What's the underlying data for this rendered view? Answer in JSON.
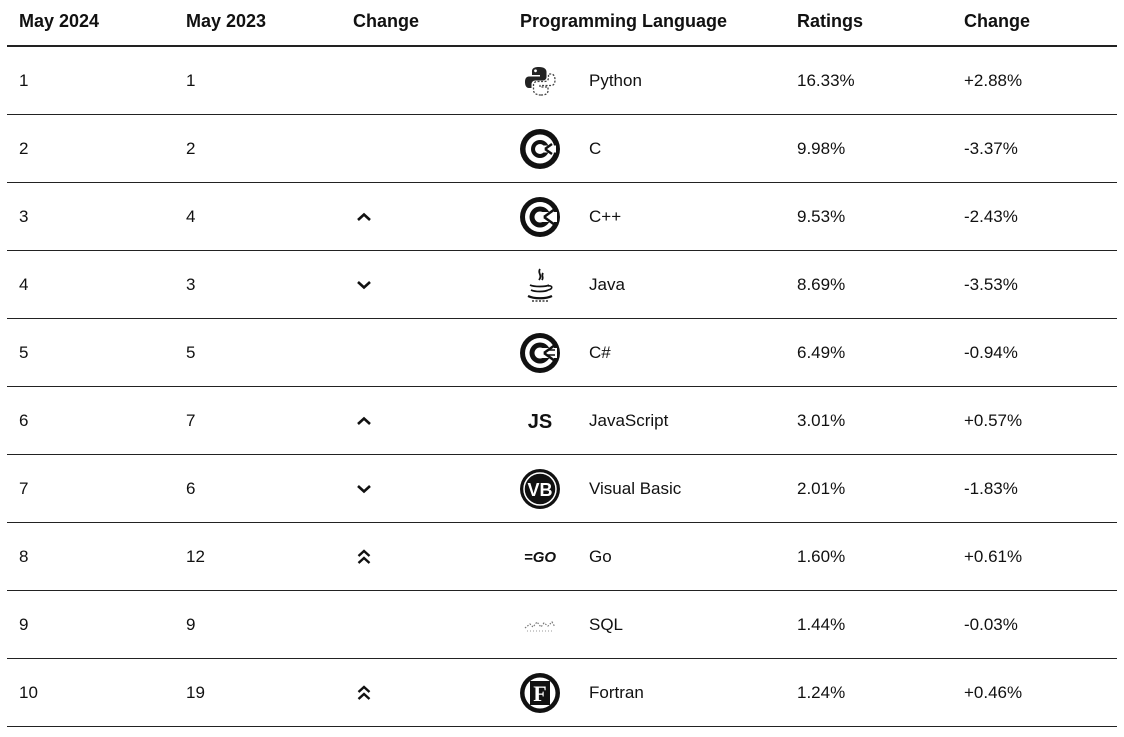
{
  "header": {
    "col_may2024": "May 2024",
    "col_may2023": "May 2023",
    "col_change": "Change",
    "col_language": "Programming Language",
    "col_ratings": "Ratings",
    "col_change2": "Change"
  },
  "rows": [
    {
      "rank_2024": "1",
      "rank_2023": "1",
      "trend": "none",
      "trend_icon": "",
      "logo": "python-icon",
      "language": "Python",
      "rating": "16.33%",
      "change": "+2.88%"
    },
    {
      "rank_2024": "2",
      "rank_2023": "2",
      "trend": "none",
      "trend_icon": "",
      "logo": "c-language-icon",
      "language": "C",
      "rating": "9.98%",
      "change": "-3.37%"
    },
    {
      "rank_2024": "3",
      "rank_2023": "4",
      "trend": "up",
      "trend_icon": "chevron-up-icon",
      "logo": "cpp-language-icon",
      "language": "C++",
      "rating": "9.53%",
      "change": "-2.43%"
    },
    {
      "rank_2024": "4",
      "rank_2023": "3",
      "trend": "down",
      "trend_icon": "chevron-down-icon",
      "logo": "java-icon",
      "language": "Java",
      "rating": "8.69%",
      "change": "-3.53%"
    },
    {
      "rank_2024": "5",
      "rank_2023": "5",
      "trend": "none",
      "trend_icon": "",
      "logo": "csharp-language-icon",
      "language": "C#",
      "rating": "6.49%",
      "change": "-0.94%"
    },
    {
      "rank_2024": "6",
      "rank_2023": "7",
      "trend": "up",
      "trend_icon": "chevron-up-icon",
      "logo": "javascript-icon",
      "logo_text": "JS",
      "language": "JavaScript",
      "rating": "3.01%",
      "change": "+0.57%"
    },
    {
      "rank_2024": "7",
      "rank_2023": "6",
      "trend": "down",
      "trend_icon": "chevron-down-icon",
      "logo": "visual-basic-icon",
      "logo_text": "VB",
      "language": "Visual Basic",
      "rating": "2.01%",
      "change": "-1.83%"
    },
    {
      "rank_2024": "8",
      "rank_2023": "12",
      "trend": "double-up",
      "trend_icon": "double-chevron-up-icon",
      "logo": "go-icon",
      "logo_text": "=GO",
      "language": "Go",
      "rating": "1.60%",
      "change": "+0.61%"
    },
    {
      "rank_2024": "9",
      "rank_2023": "9",
      "trend": "none",
      "trend_icon": "",
      "logo": "sql-icon",
      "language": "SQL",
      "rating": "1.44%",
      "change": "-0.03%"
    },
    {
      "rank_2024": "10",
      "rank_2023": "19",
      "trend": "double-up",
      "trend_icon": "double-chevron-up-icon",
      "logo": "fortran-icon",
      "logo_text": "F",
      "language": "Fortran",
      "rating": "1.24%",
      "change": "+0.46%"
    }
  ]
}
